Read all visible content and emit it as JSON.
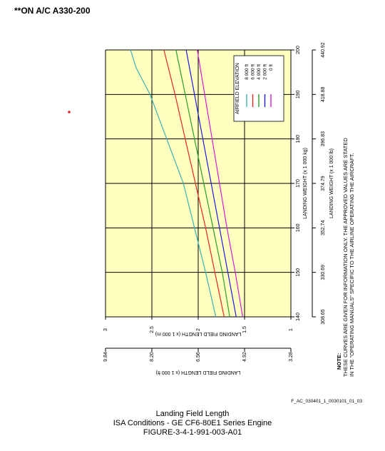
{
  "header": "**ON A/C A330-200",
  "figure_id": "F_AC_030401_1_0030101_01_03",
  "caption": {
    "line1": "Landing Field Length",
    "line2": "ISA Conditions - GE CF6-80E1 Series Engine",
    "line3": "FIGURE-3-4-1-991-003-A01"
  },
  "note": {
    "title": "NOTE:",
    "line1": "THESE CURVES ARE GIVEN FOR INFORMATION ONLY. THE APPROVED VALUES ARE STATED",
    "line2": "IN THE \"OPERATING MANUALS\" SPECIFIC TO THE AIRLINE OPERATING THE AIRCRAFT."
  },
  "colors": {
    "plot_background": "#ffffc0",
    "grid": "#000000"
  },
  "chart_data": {
    "type": "line",
    "orientation": "rotated 90 degrees",
    "grid": true,
    "legend_position": "top-right",
    "legend_title": "AIRFIELD ELEVATION",
    "xlabel": "LANDING WEIGHT (x 1 000 kg)",
    "xlim": [
      140,
      200
    ],
    "x_ticks": [
      "140",
      "150",
      "160",
      "170",
      "180",
      "190",
      "200"
    ],
    "xlabel_secondary": "LANDING WEIGHT (x 1 000 lb)",
    "x_ticks_secondary": [
      "308.65",
      "330.69",
      "352.74",
      "374.79",
      "396.83",
      "418.88",
      "440.92"
    ],
    "ylabel": "LANDING FIELD LENGTH (x 1 000 m)",
    "ylim": [
      1,
      3
    ],
    "y_ticks": [
      "1",
      "1.5",
      "2",
      "2.5",
      "3"
    ],
    "ylabel_secondary": "LANDING FIELD LENGTH (x 1 000 ft)",
    "y_ticks_secondary": [
      "3.28",
      "4.92",
      "6.56",
      "8.20",
      "9.84"
    ],
    "series": [
      {
        "name": "8 000 ft",
        "color": "#3cb0b4",
        "points": [
          [
            140,
            1.81
          ],
          [
            150,
            1.92
          ],
          [
            160,
            2.04
          ],
          [
            170,
            2.16
          ],
          [
            180,
            2.34
          ],
          [
            190,
            2.52
          ],
          [
            196,
            2.67
          ],
          [
            200,
            2.73
          ]
        ]
      },
      {
        "name": "6 000 ft",
        "color": "#e8281e",
        "points": [
          [
            140,
            1.72
          ],
          [
            150,
            1.82
          ],
          [
            160,
            1.92
          ],
          [
            170,
            2.03
          ],
          [
            180,
            2.14
          ],
          [
            190,
            2.25
          ],
          [
            200,
            2.37
          ]
        ]
      },
      {
        "name": "4 000 ft",
        "color": "#28a028",
        "points": [
          [
            140,
            1.66
          ],
          [
            150,
            1.74
          ],
          [
            160,
            1.84
          ],
          [
            170,
            1.94
          ],
          [
            180,
            2.04
          ],
          [
            190,
            2.14
          ],
          [
            200,
            2.24
          ]
        ]
      },
      {
        "name": "2 000 ft",
        "color": "#1a1ae0",
        "points": [
          [
            140,
            1.59
          ],
          [
            150,
            1.68
          ],
          [
            160,
            1.77
          ],
          [
            170,
            1.86
          ],
          [
            180,
            1.95
          ],
          [
            190,
            2.04
          ],
          [
            200,
            2.13
          ]
        ]
      },
      {
        "name": "0 ft",
        "color": "#d21ed2",
        "points": [
          [
            140,
            1.52
          ],
          [
            150,
            1.6
          ],
          [
            160,
            1.69
          ],
          [
            170,
            1.77
          ],
          [
            180,
            1.85
          ],
          [
            190,
            1.93
          ],
          [
            200,
            2.01
          ]
        ]
      }
    ]
  }
}
